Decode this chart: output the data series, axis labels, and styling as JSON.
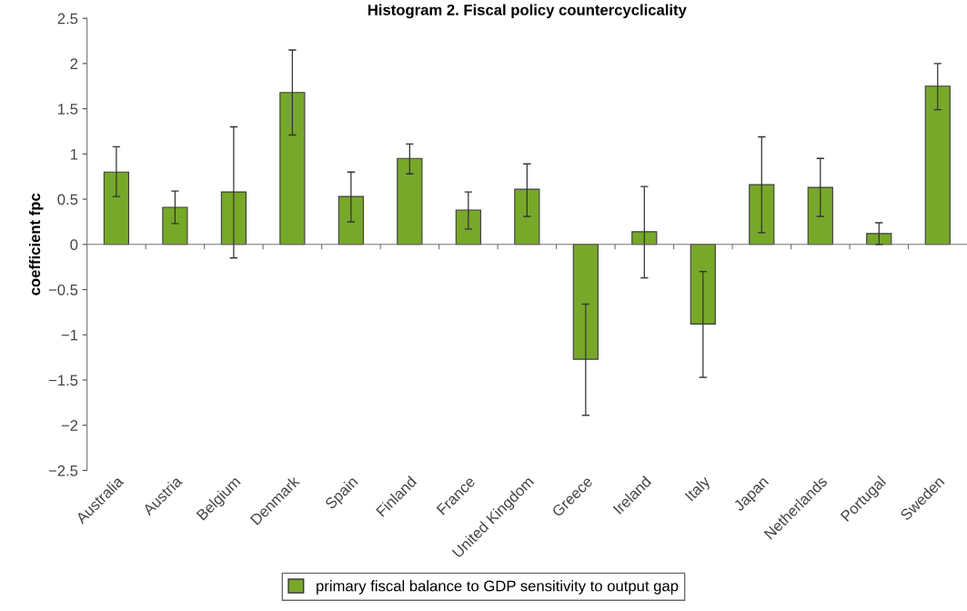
{
  "chart_data": {
    "type": "bar",
    "title": "Histogram 2. Fiscal policy countercyclicality",
    "ylabel": "coefficient fpc",
    "categories": [
      "Australia",
      "Austria",
      "Belgium",
      "Denmark",
      "Spain",
      "Finland",
      "France",
      "United Kingdom",
      "Greece",
      "Ireland",
      "Italy",
      "Japan",
      "Netherlands",
      "Portugal",
      "Sweden"
    ],
    "series": [
      {
        "name": "primary fiscal balance to GDP sensitivity to output gap",
        "color": "#78a82a",
        "values": [
          0.8,
          0.41,
          0.58,
          1.68,
          0.53,
          0.95,
          0.38,
          0.61,
          -1.27,
          0.14,
          -0.88,
          0.66,
          0.63,
          0.12,
          1.75
        ],
        "errors": [
          [
            0.53,
            1.08
          ],
          [
            0.23,
            0.59
          ],
          [
            -0.15,
            1.3
          ],
          [
            1.21,
            2.15
          ],
          [
            0.25,
            0.8
          ],
          [
            0.78,
            1.11
          ],
          [
            0.17,
            0.58
          ],
          [
            0.31,
            0.89
          ],
          [
            -1.89,
            -0.66
          ],
          [
            -0.37,
            0.64
          ],
          [
            -1.47,
            -0.3
          ],
          [
            0.13,
            1.19
          ],
          [
            0.31,
            0.95
          ],
          [
            0.0,
            0.24
          ],
          [
            1.49,
            2.0
          ]
        ]
      }
    ],
    "ylim": [
      -2.5,
      2.5
    ],
    "yticks": [
      {
        "value": -2.5,
        "label": "−2.5"
      },
      {
        "value": -2,
        "label": "−2"
      },
      {
        "value": -1.5,
        "label": "−1.5"
      },
      {
        "value": -1,
        "label": "−1"
      },
      {
        "value": -0.5,
        "label": "−0.5"
      },
      0,
      0.5,
      1,
      1.5,
      2,
      2.5
    ],
    "legend": "bottom"
  }
}
